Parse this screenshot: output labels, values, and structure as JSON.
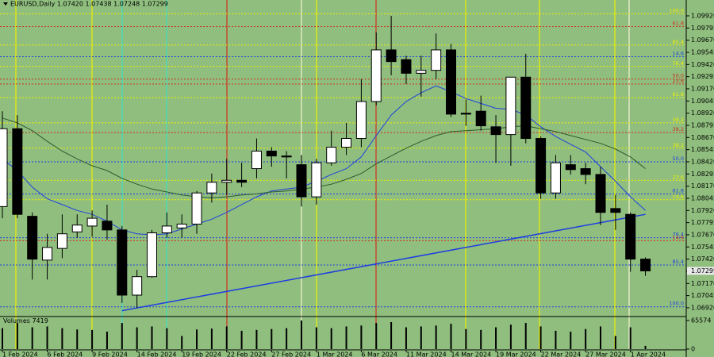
{
  "chart_data": {
    "type": "candlestick",
    "title": "EURUSD,Daily 1.07420 1.07438 1.07248 1.07299",
    "categories": [
      "1 Feb 2024",
      null,
      null,
      "6 Feb 2024",
      null,
      null,
      "9 Feb 2024",
      null,
      null,
      "14 Feb 2024",
      null,
      null,
      "19 Feb 2024",
      null,
      null,
      "22 Feb 2024",
      null,
      null,
      "27 Feb 2024",
      null,
      null,
      "1 Mar 2024",
      null,
      null,
      "6 Mar 2024",
      null,
      null,
      "11 Mar 2024",
      null,
      null,
      "14 Mar 2024",
      null,
      null,
      "19 Mar 2024",
      null,
      null,
      "22 Mar 2024",
      null,
      null,
      "27 Mar 2024",
      null,
      null,
      "1 Apr 2024",
      null
    ],
    "open": [
      1.0796,
      1.0876,
      1.0786,
      1.0741,
      1.0753,
      1.077,
      1.0776,
      1.0781,
      1.0772,
      1.0705,
      1.0724,
      1.0769,
      1.0774,
      1.0778,
      1.081,
      1.0821,
      1.0823,
      1.0835,
      1.0853,
      1.0848,
      1.0839,
      1.0806,
      1.0841,
      1.0857,
      1.0866,
      1.0904,
      1.0957,
      1.0947,
      1.0933,
      1.0936,
      1.0957,
      1.0892,
      1.0894,
      1.0878,
      1.087,
      1.0929,
      1.0866,
      1.081,
      1.0839,
      1.0835,
      1.0829,
      1.0794,
      1.0788,
      1.0742
    ],
    "high": [
      1.0894,
      1.089,
      1.079,
      1.0768,
      1.0788,
      1.0788,
      1.0792,
      1.0798,
      1.0776,
      1.0731,
      1.0772,
      1.079,
      1.0788,
      1.0812,
      1.083,
      1.0845,
      1.0841,
      1.0866,
      1.0857,
      1.0853,
      1.0849,
      1.0845,
      1.0874,
      1.0882,
      1.0927,
      1.0975,
      1.0992,
      1.0951,
      1.0951,
      1.0974,
      1.0963,
      1.0906,
      1.091,
      1.089,
      1.0929,
      1.0953,
      1.0868,
      1.0849,
      1.0849,
      1.0841,
      1.0837,
      1.0808,
      1.079,
      1.07438
    ],
    "low": [
      1.0784,
      1.0784,
      1.0721,
      1.0721,
      1.0743,
      1.0764,
      1.0765,
      1.0762,
      1.0697,
      1.0692,
      1.0723,
      1.0764,
      1.0764,
      1.0768,
      1.08,
      1.0808,
      1.0816,
      1.0825,
      1.0837,
      1.0825,
      1.0796,
      1.0798,
      1.0838,
      1.0849,
      1.0857,
      1.09,
      1.0931,
      1.0922,
      1.0909,
      1.0927,
      1.0888,
      1.0879,
      1.0874,
      1.0841,
      1.0838,
      1.0861,
      1.0804,
      1.0804,
      1.0829,
      1.0819,
      1.0777,
      1.0772,
      1.0729,
      1.07248
    ],
    "close": [
      1.0876,
      1.0788,
      1.0742,
      1.0754,
      1.0768,
      1.0777,
      1.0784,
      1.0772,
      1.0705,
      1.0724,
      1.0769,
      1.0776,
      1.0778,
      1.081,
      1.0821,
      1.0823,
      1.0821,
      1.0853,
      1.0848,
      1.0847,
      1.0806,
      1.0841,
      1.0857,
      1.0866,
      1.0904,
      1.0957,
      1.0945,
      1.0933,
      1.0936,
      1.0957,
      1.0891,
      1.0891,
      1.0879,
      1.087,
      1.0929,
      1.0866,
      1.081,
      1.0841,
      1.0834,
      1.0829,
      1.079,
      1.079,
      1.0742,
      1.07299
    ],
    "up_color": "#ffffff",
    "down_color": "#000000",
    "ylim": [
      1.06838,
      1.10083
    ],
    "yticks": [
      {
        "value": 1.0992,
        "label": "1.09920"
      },
      1.09795,
      {
        "value": 1.0967,
        "label": "1.09670"
      },
      1.09545,
      {
        "value": 1.0942,
        "label": "1.09420"
      },
      1.09295,
      {
        "value": 1.0917,
        "label": "1.09170"
      },
      1.09045,
      {
        "value": 1.0892,
        "label": "1.08920"
      },
      1.08795,
      {
        "value": 1.0867,
        "label": "1.08670"
      },
      1.08545,
      {
        "value": 1.0842,
        "label": "1.08420"
      },
      1.08295,
      {
        "value": 1.0817,
        "label": "1.08170"
      },
      1.08045,
      {
        "value": 1.0792,
        "label": "1.07920"
      },
      1.07795,
      {
        "value": 1.0767,
        "label": "1.07670"
      },
      1.07545,
      {
        "value": 1.0742,
        "label": "1.07420"
      },
      1.07295,
      {
        "value": 1.0717,
        "label": "1.07170"
      },
      1.07045,
      {
        "value": 1.0692,
        "label": "1.06920"
      }
    ],
    "price_marker": {
      "value": 1.07299,
      "label": "1.07299"
    },
    "overlays": [
      {
        "color": "#1f3fe0",
        "values": [
          1.0845,
          1.0833,
          1.0816,
          1.0804,
          1.0798,
          1.0792,
          1.0788,
          1.0781,
          1.0772,
          1.0768,
          1.0767,
          1.0768,
          1.0773,
          1.0778,
          1.0783,
          1.079,
          1.0798,
          1.0806,
          1.0812,
          1.0814,
          1.0816,
          1.0822,
          1.0829,
          1.0835,
          1.0847,
          1.0869,
          1.089,
          1.0904,
          1.0913,
          1.092,
          1.0914,
          1.0907,
          1.0902,
          1.0897,
          1.0896,
          1.089,
          1.0878,
          1.0868,
          1.086,
          1.0852,
          1.0837,
          1.0822,
          1.0806,
          1.0792
        ]
      },
      {
        "color": "#2e5a2e",
        "values": [
          1.0887,
          1.0882,
          1.0874,
          1.0863,
          1.0853,
          1.0845,
          1.0838,
          1.0833,
          1.0825,
          1.0819,
          1.0814,
          1.0811,
          1.0808,
          1.0806,
          1.0805,
          1.0806,
          1.0808,
          1.0809,
          1.0811,
          1.0812,
          1.0814,
          1.0816,
          1.0819,
          1.0824,
          1.083,
          1.084,
          1.0848,
          1.0856,
          1.0863,
          1.0869,
          1.0873,
          1.0874,
          1.0875,
          1.0876,
          1.0878,
          1.0879,
          1.0876,
          1.0873,
          1.0869,
          1.0865,
          1.0861,
          1.0855,
          1.0847,
          1.0835
        ]
      }
    ],
    "trendline": {
      "color": "#1f3fe0",
      "from": [
        8,
        1.0689
      ],
      "to": [
        43,
        1.0788
      ]
    },
    "levels": [
      {
        "value": 1.0994,
        "label": "100.0",
        "color": "#f0f000"
      },
      {
        "value": 1.0981,
        "label": "61.8",
        "color": "#d03020"
      },
      {
        "value": 1.0962,
        "label": "85.4",
        "color": "#f0f000"
      },
      {
        "value": 1.095,
        "label": "14.6",
        "color": "#2040e0"
      },
      {
        "value": 1.094,
        "label": "76.4",
        "color": "#f0f000"
      },
      {
        "value": 1.0927,
        "label": "50.0",
        "color": "#d03020"
      },
      {
        "value": 1.0922,
        "label": "23.6",
        "color": "#d03020"
      },
      {
        "value": 1.0908,
        "label": "61.8",
        "color": "#f0f000"
      },
      {
        "value": 1.0882,
        "label": "38.2",
        "color": "#f0f000"
      },
      {
        "value": 1.0872,
        "label": "38.2",
        "color": "#d03020"
      },
      {
        "value": 1.0856,
        "label": "38.2",
        "color": "#f0f000"
      },
      {
        "value": 1.0842,
        "label": "50.0",
        "color": "#2040e0"
      },
      {
        "value": 1.0823,
        "label": "23.6",
        "color": "#f0f000"
      },
      {
        "value": 1.0809,
        "label": "61.8",
        "color": "#2040e0"
      },
      {
        "value": 1.0803,
        "label": "14.6",
        "color": "#f0f000"
      },
      {
        "value": 1.0764,
        "label": "76.4",
        "color": "#2040e0"
      },
      {
        "value": 1.0761,
        "label": "14.6",
        "color": "#d03020"
      },
      {
        "value": 1.0736,
        "label": "85.4",
        "color": "#2040e0"
      },
      {
        "value": 1.0693,
        "label": "100.0",
        "color": "#2040e0"
      }
    ],
    "volume": {
      "title": "Volumes",
      "color": "#000000",
      "values": [
        48000,
        60000,
        50000,
        52000,
        48000,
        45000,
        44000,
        40000,
        60000,
        50000,
        52000,
        48000,
        30000,
        45000,
        47000,
        52000,
        42000,
        44000,
        46000,
        48000,
        65574,
        50000,
        48000,
        52000,
        54000,
        60000,
        62000,
        50000,
        52000,
        54000,
        58000,
        46000,
        44000,
        50000,
        56000,
        60000,
        52000,
        42000,
        40000,
        46000,
        52000,
        30000,
        50000,
        7419
      ],
      "ylim": [
        0,
        65574
      ],
      "yticks": [
        0,
        65574
      ]
    }
  }
}
